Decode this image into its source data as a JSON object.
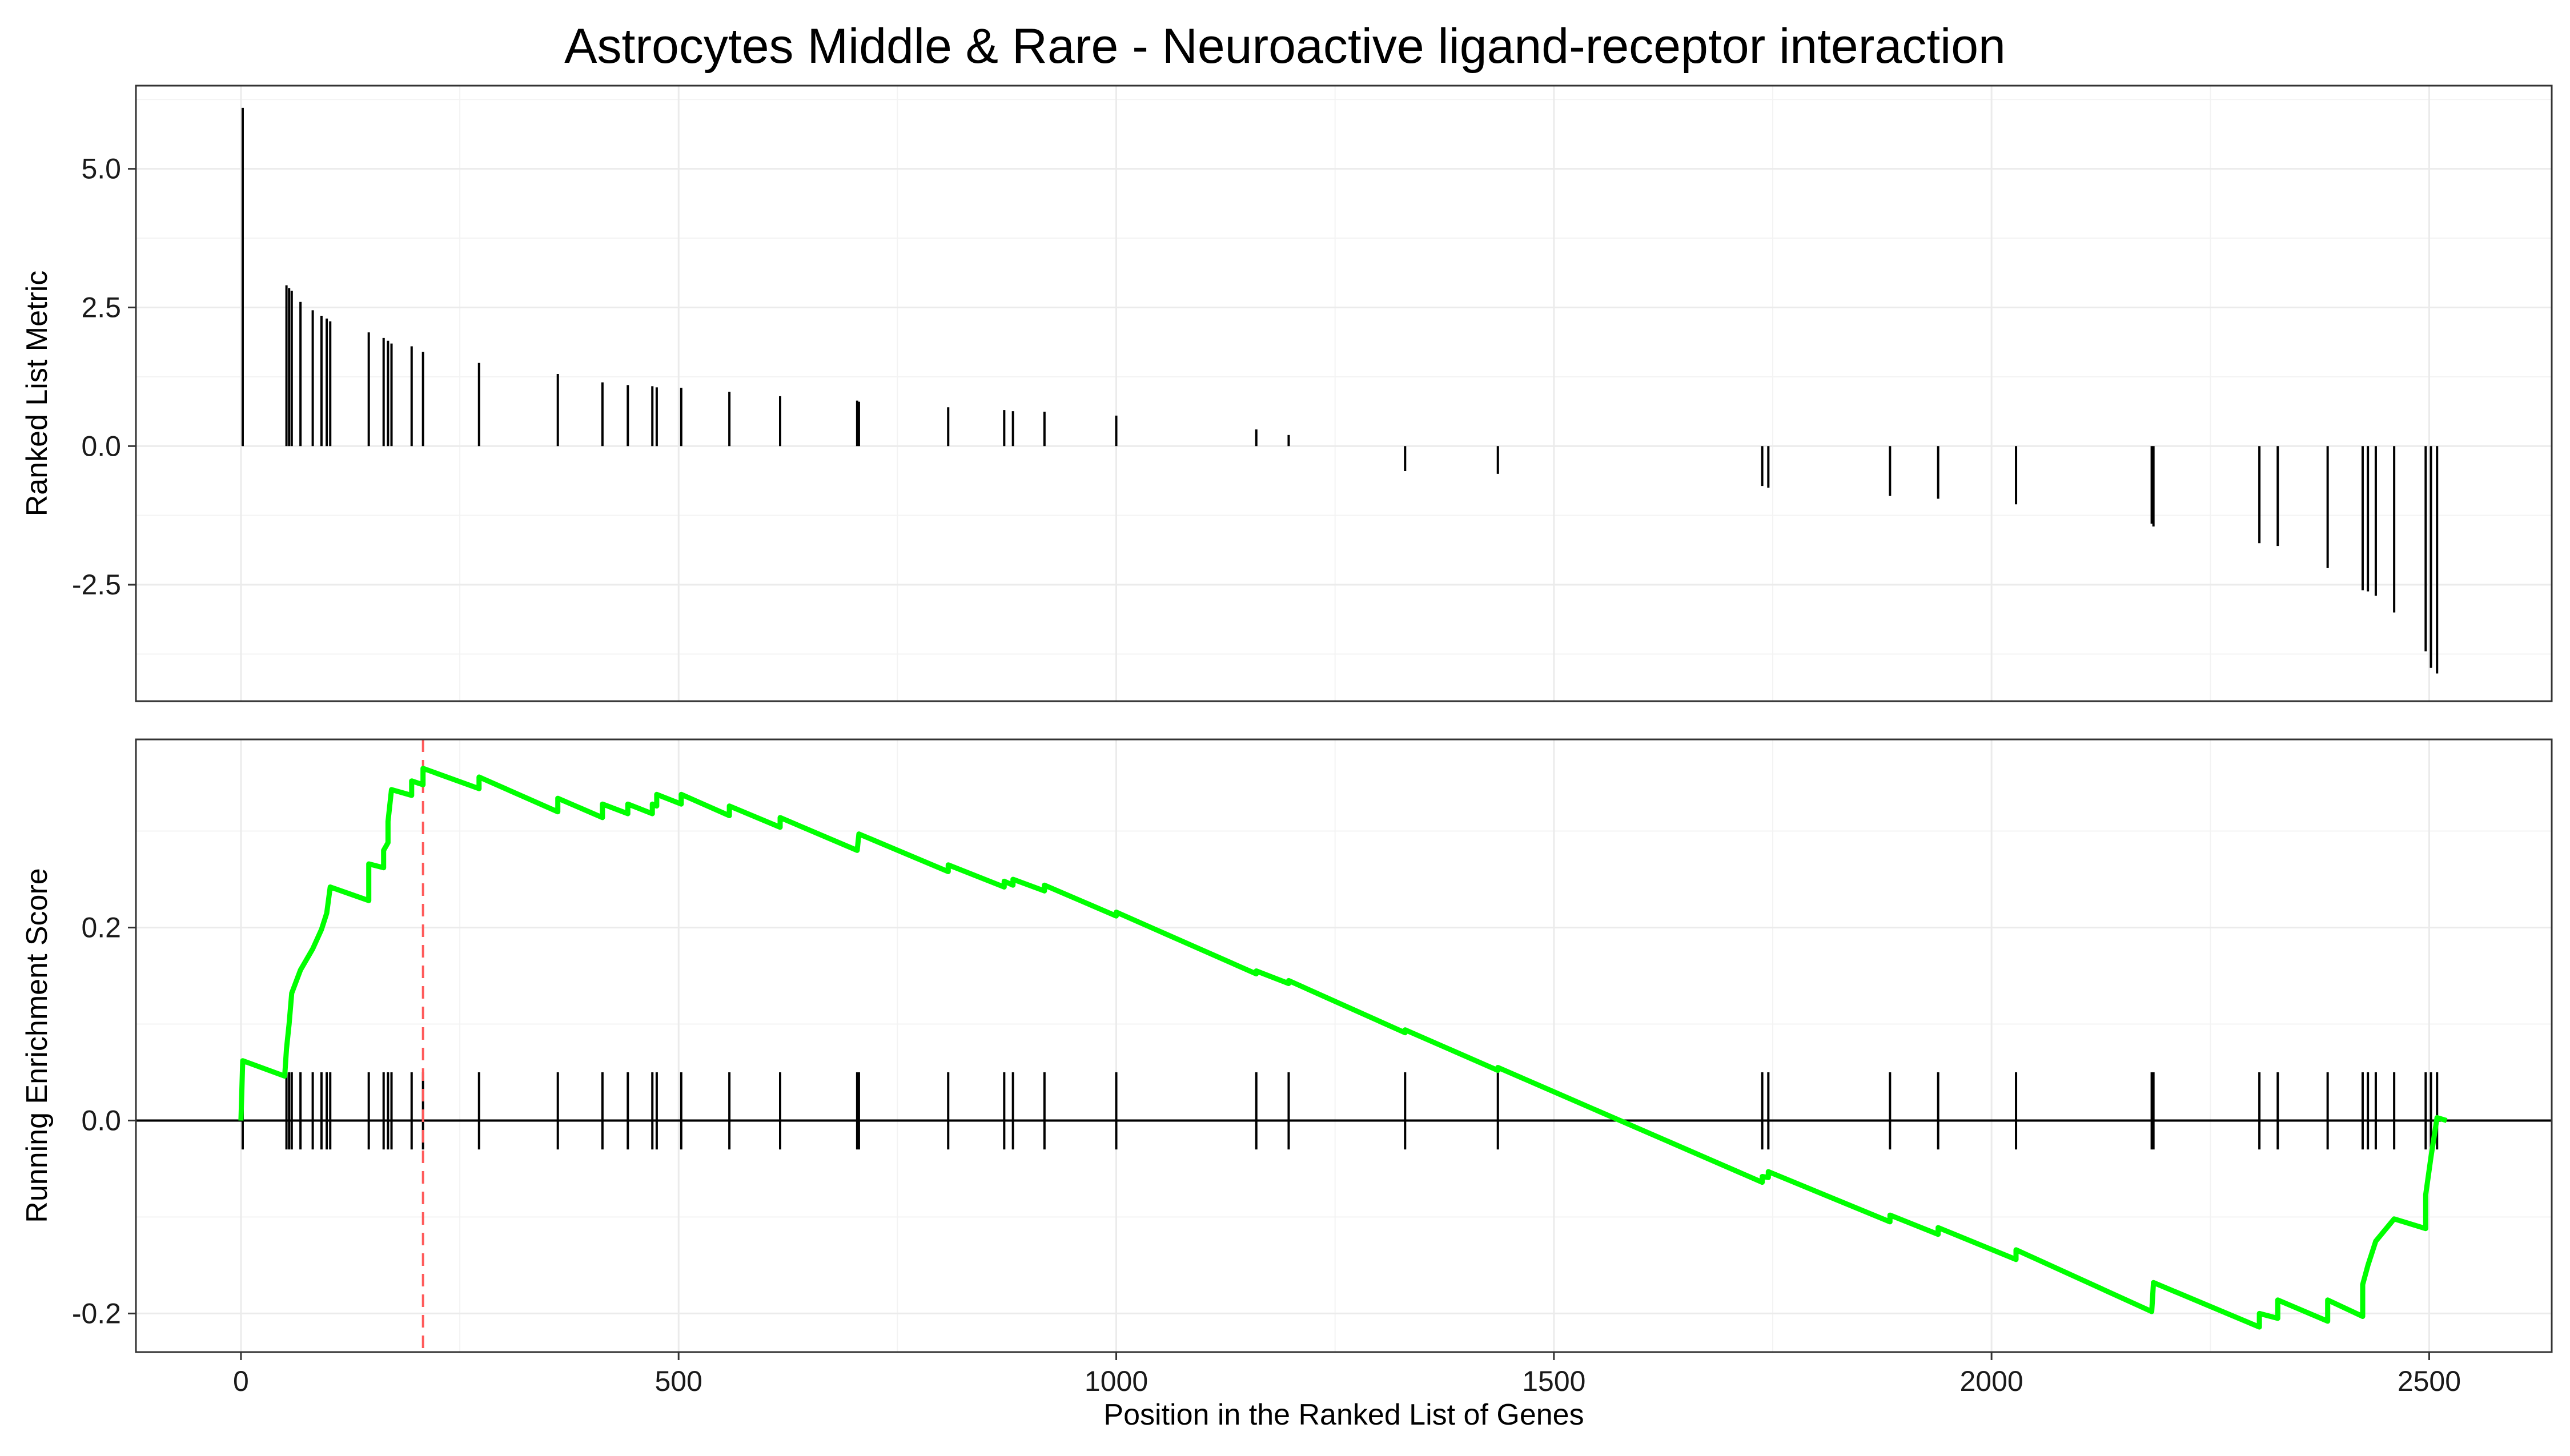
{
  "chart_data": {
    "type": "line",
    "title": "Astrocytes Middle & Rare - Neuroactive ligand-receptor interaction",
    "xlabel": "Position in the Ranked List of Genes",
    "xlim": [
      -120,
      2640
    ],
    "x_ticks": [
      "0",
      "500",
      "1000",
      "1500",
      "2000",
      "2500"
    ],
    "peak_position": 208,
    "peak_line_color": "#ff5a5a",
    "running_line_color": "#00ff00",
    "gene_positions": [
      2,
      52,
      55,
      58,
      68,
      82,
      92,
      98,
      102,
      146,
      163,
      168,
      172,
      195,
      208,
      272,
      362,
      413,
      442,
      470,
      475,
      503,
      558,
      616,
      704,
      706,
      808,
      872,
      882,
      918,
      1000,
      1160,
      1197,
      1330,
      1436,
      1738,
      1745,
      1884,
      1939,
      2028,
      2183,
      2185,
      2306,
      2327,
      2384,
      2424,
      2430,
      2439,
      2460,
      2496,
      2502,
      2509
    ],
    "ranked_metric": {
      "ylabel": "Ranked List Metric",
      "ylim": [
        -4.6,
        6.5
      ],
      "y_ticks": [
        5.0,
        2.5,
        0.0,
        -2.5
      ],
      "y_tick_labels": [
        "5.0",
        "2.5",
        "0.0",
        "-2.5"
      ],
      "values": [
        6.1,
        2.9,
        2.85,
        2.8,
        2.6,
        2.45,
        2.35,
        2.3,
        2.25,
        2.05,
        1.95,
        1.9,
        1.85,
        1.8,
        1.7,
        1.5,
        1.3,
        1.15,
        1.1,
        1.08,
        1.06,
        1.05,
        0.98,
        0.9,
        0.82,
        0.8,
        0.7,
        0.65,
        0.63,
        0.62,
        0.55,
        0.3,
        0.2,
        -0.45,
        -0.5,
        -0.72,
        -0.75,
        -0.9,
        -0.95,
        -1.05,
        -1.4,
        -1.45,
        -1.75,
        -1.8,
        -2.2,
        -2.6,
        -2.62,
        -2.7,
        -3.0,
        -3.7,
        -4.0,
        -4.1
      ]
    },
    "running_es": {
      "ylabel": "Running Enrichment Score",
      "ylim": [
        -0.24,
        0.395
      ],
      "y_ticks": [
        0.2,
        0.0,
        -0.2
      ],
      "y_tick_labels": [
        "0.2",
        "0.0",
        "-0.2"
      ],
      "points": [
        [
          0,
          0
        ],
        [
          2,
          0.062
        ],
        [
          50,
          0.046
        ],
        [
          52,
          0.074
        ],
        [
          55,
          0.1
        ],
        [
          58,
          0.132
        ],
        [
          68,
          0.156
        ],
        [
          82,
          0.178
        ],
        [
          92,
          0.198
        ],
        [
          98,
          0.215
        ],
        [
          102,
          0.242
        ],
        [
          146,
          0.228
        ],
        [
          146,
          0.266
        ],
        [
          163,
          0.262
        ],
        [
          163,
          0.28
        ],
        [
          168,
          0.288
        ],
        [
          168,
          0.31
        ],
        [
          172,
          0.343
        ],
        [
          195,
          0.337
        ],
        [
          195,
          0.352
        ],
        [
          208,
          0.348
        ],
        [
          208,
          0.365
        ],
        [
          272,
          0.344
        ],
        [
          272,
          0.356
        ],
        [
          362,
          0.32
        ],
        [
          362,
          0.334
        ],
        [
          413,
          0.314
        ],
        [
          413,
          0.328
        ],
        [
          442,
          0.318
        ],
        [
          442,
          0.328
        ],
        [
          470,
          0.318
        ],
        [
          470,
          0.328
        ],
        [
          475,
          0.326
        ],
        [
          475,
          0.338
        ],
        [
          503,
          0.328
        ],
        [
          503,
          0.338
        ],
        [
          558,
          0.316
        ],
        [
          558,
          0.326
        ],
        [
          616,
          0.304
        ],
        [
          616,
          0.314
        ],
        [
          704,
          0.28
        ],
        [
          706,
          0.297
        ],
        [
          808,
          0.258
        ],
        [
          808,
          0.265
        ],
        [
          872,
          0.242
        ],
        [
          872,
          0.248
        ],
        [
          882,
          0.244
        ],
        [
          882,
          0.25
        ],
        [
          918,
          0.238
        ],
        [
          918,
          0.244
        ],
        [
          1000,
          0.212
        ],
        [
          1000,
          0.216
        ],
        [
          1160,
          0.152
        ],
        [
          1160,
          0.155
        ],
        [
          1197,
          0.142
        ],
        [
          1197,
          0.145
        ],
        [
          1330,
          0.091
        ],
        [
          1330,
          0.094
        ],
        [
          1436,
          0.052
        ],
        [
          1436,
          0.055
        ],
        [
          1738,
          -0.064
        ],
        [
          1738,
          -0.058
        ],
        [
          1745,
          -0.059
        ],
        [
          1745,
          -0.053
        ],
        [
          1884,
          -0.105
        ],
        [
          1884,
          -0.098
        ],
        [
          1939,
          -0.118
        ],
        [
          1939,
          -0.111
        ],
        [
          2028,
          -0.144
        ],
        [
          2028,
          -0.134
        ],
        [
          2183,
          -0.198
        ],
        [
          2185,
          -0.168
        ],
        [
          2306,
          -0.214
        ],
        [
          2306,
          -0.2
        ],
        [
          2327,
          -0.205
        ],
        [
          2327,
          -0.186
        ],
        [
          2384,
          -0.208
        ],
        [
          2384,
          -0.186
        ],
        [
          2424,
          -0.203
        ],
        [
          2424,
          -0.17
        ],
        [
          2430,
          -0.15
        ],
        [
          2439,
          -0.125
        ],
        [
          2460,
          -0.102
        ],
        [
          2496,
          -0.112
        ],
        [
          2496,
          -0.077
        ],
        [
          2502,
          -0.038
        ],
        [
          2509,
          0.003
        ],
        [
          2520,
          0
        ]
      ]
    }
  }
}
